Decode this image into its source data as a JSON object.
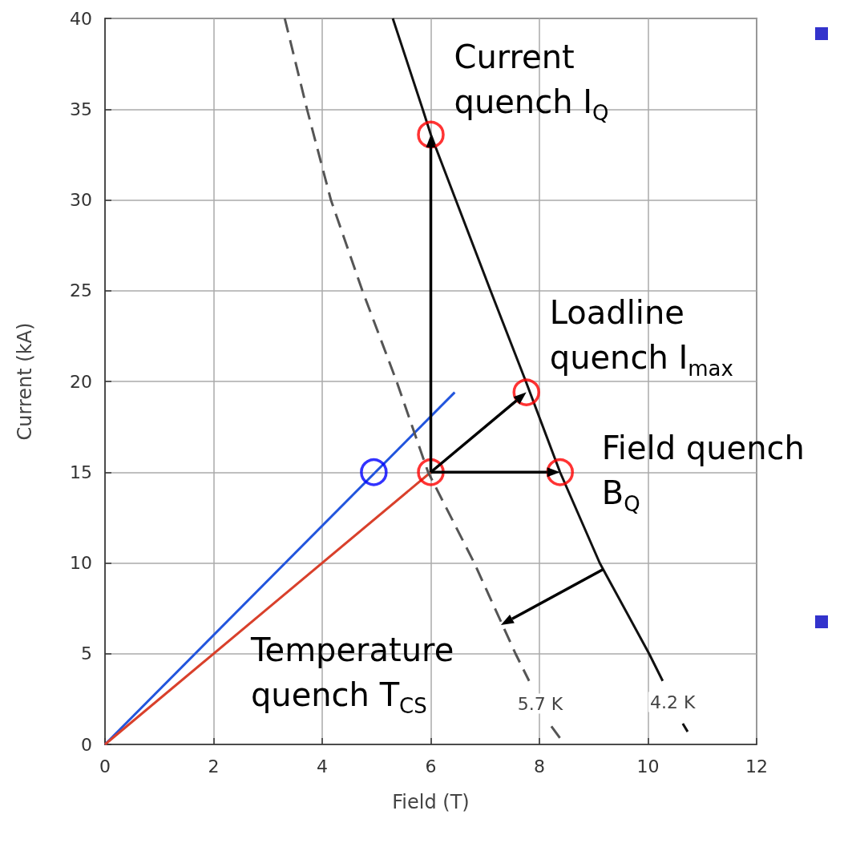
{
  "chart_data": {
    "type": "line",
    "xlabel": "Field (T)",
    "ylabel": "Current (kA)",
    "xlim": [
      0,
      12
    ],
    "xticks": [
      0,
      2,
      4,
      6,
      8,
      10,
      12
    ],
    "ylim": [
      0,
      40
    ],
    "yticks": [
      0,
      5,
      10,
      15,
      20,
      25,
      30,
      35,
      40
    ],
    "grid": true,
    "series": [
      {
        "color": "#2255dd",
        "line_style": "solid",
        "x": [
          0,
          6.44
        ],
        "values": [
          0,
          19.4
        ]
      },
      {
        "color": "#d9402b",
        "line_style": "solid",
        "x": [
          0,
          6
        ],
        "values": [
          0,
          15
        ]
      },
      {
        "name": "5.7 K",
        "color": "#555555",
        "line_style": "dashed",
        "x": [
          3.31,
          3.72,
          4.16,
          4.74,
          5.37,
          5.95,
          6.8,
          7.56,
          7.81,
          8.0,
          8.22,
          8.44
        ],
        "values": [
          40,
          35,
          30,
          25,
          20,
          15,
          10,
          5,
          3.5,
          null,
          1.0,
          0.1
        ]
      },
      {
        "name": "4.2 K",
        "color": "#111111",
        "line_style": "solid",
        "x": [
          5.3,
          5.85,
          6.0,
          6.46,
          7.1,
          7.75,
          8.38,
          9.11,
          10.02,
          10.27,
          10.45,
          10.64,
          10.73
        ],
        "values": [
          40,
          35,
          33.6,
          30,
          25,
          20,
          15,
          10,
          5,
          3.5,
          null,
          1.15,
          0.7
        ]
      },
      {
        "type": "scatter",
        "marker": "circle",
        "color": "#ff0000",
        "x": [
          6,
          6,
          7.76,
          8.38
        ],
        "values": [
          15,
          33.6,
          19.4,
          15
        ]
      },
      {
        "type": "scatter",
        "marker": "circle",
        "color": "#0000ff",
        "x": [
          4.95
        ],
        "values": [
          15
        ]
      }
    ],
    "annotations": [
      {
        "text": "Current quench I$_{Q}$",
        "x": 6,
        "y": 33.6
      },
      {
        "text": "Loadline quench I$_{max}$",
        "x": 7.76,
        "y": 19.4
      },
      {
        "text": "Field quench B$_{Q}$",
        "x": 8.38,
        "y": 15
      },
      {
        "text": "Temperature quench T$_{CS}$",
        "x": 7.29,
        "y": 6.58
      }
    ]
  }
}
